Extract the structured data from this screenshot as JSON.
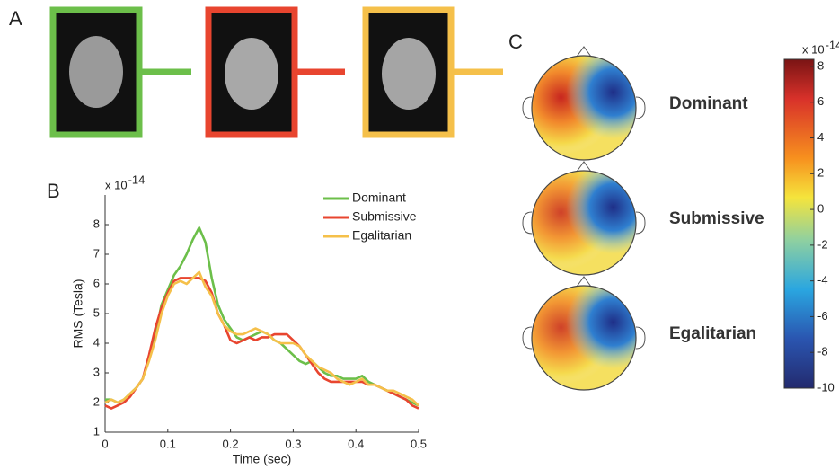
{
  "panels": [
    "A",
    "B",
    "C"
  ],
  "chart_data": {
    "type": "line",
    "xlabel": "Time (sec)",
    "ylabel": "RMS (Tesla)",
    "y_exponent_base": "x 10",
    "y_exponent": "-14",
    "x": [
      0,
      0.01,
      0.02,
      0.03,
      0.04,
      0.05,
      0.06,
      0.07,
      0.08,
      0.09,
      0.1,
      0.11,
      0.12,
      0.13,
      0.14,
      0.15,
      0.16,
      0.17,
      0.18,
      0.19,
      0.2,
      0.21,
      0.22,
      0.23,
      0.24,
      0.25,
      0.26,
      0.27,
      0.28,
      0.29,
      0.3,
      0.31,
      0.32,
      0.33,
      0.34,
      0.35,
      0.36,
      0.37,
      0.38,
      0.39,
      0.4,
      0.41,
      0.42,
      0.43,
      0.44,
      0.45,
      0.46,
      0.47,
      0.48,
      0.49,
      0.5
    ],
    "series": [
      {
        "name": "Dominant",
        "color": "#6cbf4a",
        "values": [
          2.1,
          2.1,
          2.0,
          2.1,
          2.3,
          2.5,
          2.8,
          3.5,
          4.3,
          5.3,
          5.8,
          6.3,
          6.6,
          7.0,
          7.5,
          7.9,
          7.4,
          6.2,
          5.3,
          4.8,
          4.5,
          4.2,
          4.1,
          4.2,
          4.3,
          4.4,
          4.3,
          4.1,
          4.0,
          3.8,
          3.6,
          3.4,
          3.3,
          3.4,
          3.2,
          3.0,
          2.9,
          2.9,
          2.8,
          2.8,
          2.8,
          2.9,
          2.7,
          2.6,
          2.5,
          2.4,
          2.3,
          2.2,
          2.1,
          2.0,
          1.9
        ]
      },
      {
        "name": "Submissive",
        "color": "#e8452f",
        "values": [
          1.9,
          1.8,
          1.9,
          2.0,
          2.2,
          2.5,
          2.8,
          3.6,
          4.5,
          5.2,
          5.7,
          6.1,
          6.2,
          6.2,
          6.2,
          6.2,
          6.1,
          5.7,
          5.0,
          4.6,
          4.1,
          4.0,
          4.1,
          4.2,
          4.1,
          4.2,
          4.2,
          4.3,
          4.3,
          4.3,
          4.1,
          3.9,
          3.6,
          3.3,
          3.0,
          2.8,
          2.7,
          2.7,
          2.7,
          2.7,
          2.7,
          2.7,
          2.6,
          2.6,
          2.5,
          2.4,
          2.3,
          2.2,
          2.1,
          1.9,
          1.8
        ]
      },
      {
        "name": "Egalitarian",
        "color": "#f5c04a",
        "values": [
          2.0,
          2.1,
          2.0,
          2.1,
          2.3,
          2.5,
          2.8,
          3.4,
          4.1,
          5.0,
          5.6,
          6.0,
          6.1,
          6.0,
          6.2,
          6.4,
          5.9,
          5.6,
          5.0,
          4.6,
          4.4,
          4.3,
          4.3,
          4.4,
          4.5,
          4.4,
          4.3,
          4.1,
          4.0,
          4.0,
          4.0,
          3.9,
          3.6,
          3.4,
          3.2,
          3.1,
          3.0,
          2.8,
          2.7,
          2.6,
          2.7,
          2.8,
          2.6,
          2.6,
          2.5,
          2.4,
          2.4,
          2.3,
          2.2,
          2.1,
          1.9
        ]
      }
    ],
    "xlim": [
      0,
      0.5
    ],
    "xticks": [
      0,
      0.1,
      0.2,
      0.3,
      0.4,
      0.5
    ],
    "ylim": [
      1,
      9
    ],
    "yticks": [
      1,
      2,
      3,
      4,
      5,
      6,
      7,
      8
    ],
    "legend": "upper right"
  },
  "topomaps": [
    "Dominant",
    "Submissive",
    "Egalitarian"
  ],
  "colorbar": {
    "lim": [
      -10,
      8.4
    ],
    "ticks": [
      8,
      6,
      4,
      2,
      0,
      -2,
      -4,
      -6,
      -8,
      -10
    ],
    "exponent_base": "x 10",
    "exponent": "-14"
  }
}
